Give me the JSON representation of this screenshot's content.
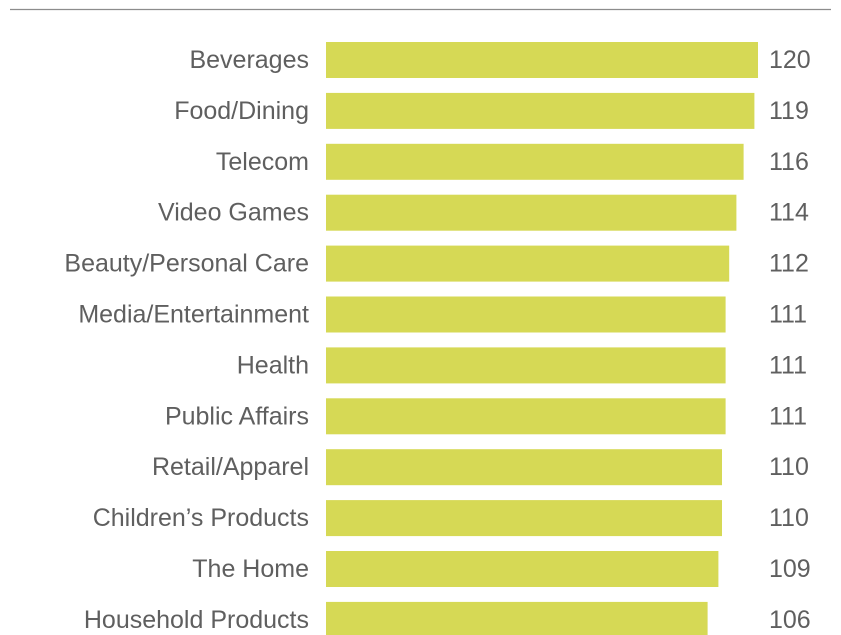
{
  "colors": {
    "bar": "#d6d955",
    "text": "#5f5f5f",
    "rule": "#8c8c8c"
  },
  "chart_data": {
    "type": "bar",
    "orientation": "horizontal",
    "categories": [
      "Beverages",
      "Food/Dining",
      "Telecom",
      "Video Games",
      "Beauty/Personal Care",
      "Media/Entertainment",
      "Health",
      "Public Affairs",
      "Retail/Apparel",
      "Children’s Products",
      "The Home",
      "Household Products"
    ],
    "values": [
      120,
      119,
      116,
      114,
      112,
      111,
      111,
      111,
      110,
      110,
      109,
      106
    ],
    "value_labels": [
      "120",
      "119",
      "116",
      "114",
      "112",
      "111",
      "111",
      "111",
      "110",
      "110",
      "109",
      "106"
    ],
    "xlim": [
      0,
      120
    ],
    "grid": false,
    "legend": "none"
  }
}
